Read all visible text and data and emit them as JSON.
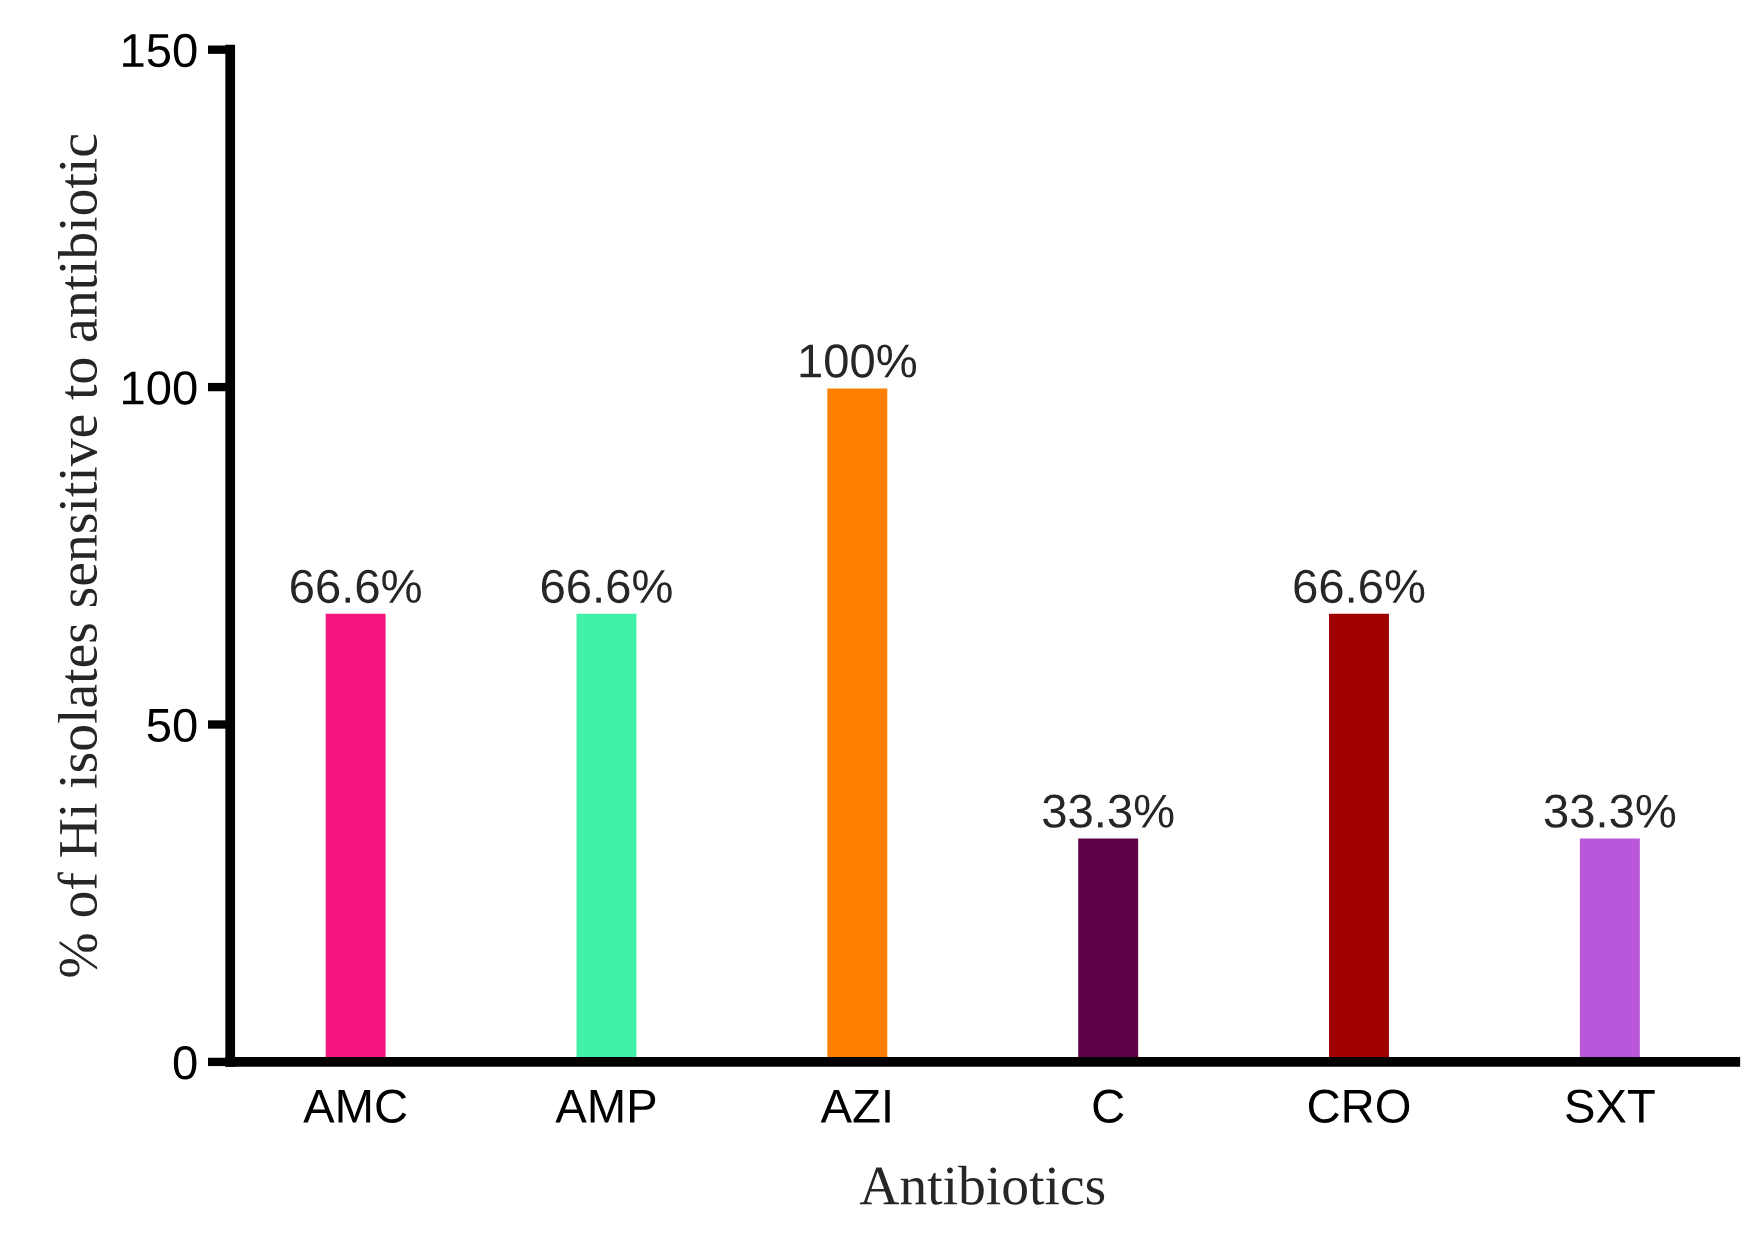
{
  "chart_data": {
    "type": "bar",
    "xlabel": "Antibiotics",
    "ylabel": "% of Hi isolates sensitive to antibiotic",
    "categories": [
      "AMC",
      "AMP",
      "AZI",
      "C",
      "CRO",
      "SXT"
    ],
    "values": [
      66.6,
      66.6,
      100,
      33.3,
      66.6,
      33.3
    ],
    "value_labels": [
      "66.6%",
      "66.6%",
      "100%",
      "33.3%",
      "66.6%",
      "33.3%"
    ],
    "colors": [
      "#f5177f",
      "#41f0a9",
      "#ff7f00",
      "#5c004a",
      "#a00000",
      "#b857d9"
    ],
    "ylim": [
      0,
      150
    ],
    "yticks": [
      0,
      50,
      100,
      150
    ],
    "grid": false,
    "legend": false
  }
}
